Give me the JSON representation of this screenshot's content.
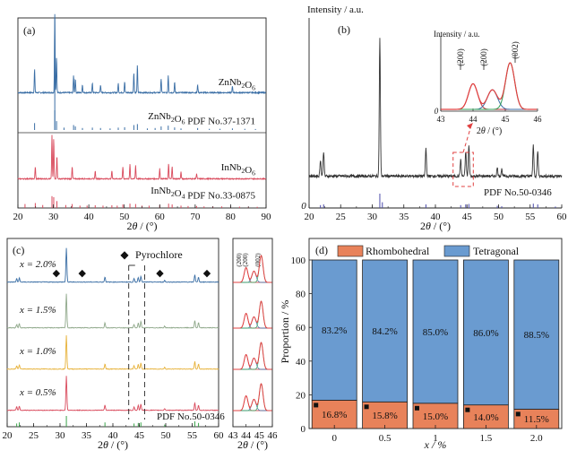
{
  "chart_data": [
    {
      "panel": "(a)",
      "type": "line",
      "xlabel": "2θ / (°)",
      "x_ticks": [
        20,
        30,
        40,
        50,
        60,
        70,
        80,
        90
      ],
      "xlim": [
        20,
        90
      ],
      "series": [
        {
          "name": "ZnNb2O6",
          "color": "#3a6ea5",
          "peaks": [
            [
              24.7,
              0.3
            ],
            [
              30.4,
              1.0
            ],
            [
              30.9,
              0.45
            ],
            [
              35.7,
              0.22
            ],
            [
              36.2,
              0.18
            ],
            [
              38.2,
              0.1
            ],
            [
              41.0,
              0.12
            ],
            [
              43.3,
              0.1
            ],
            [
              48.3,
              0.12
            ],
            [
              50.1,
              0.14
            ],
            [
              52.7,
              0.25
            ],
            [
              53.7,
              0.35
            ],
            [
              60.4,
              0.18
            ],
            [
              62.4,
              0.22
            ],
            [
              64.2,
              0.13
            ],
            [
              70.7,
              0.1
            ],
            [
              80.5,
              0.08
            ]
          ]
        },
        {
          "name": "InNb2O6",
          "color": "#d94a5c",
          "peaks": [
            [
              24.9,
              0.18
            ],
            [
              29.6,
              0.65
            ],
            [
              30.1,
              0.6
            ],
            [
              31.0,
              0.35
            ],
            [
              35.3,
              0.18
            ],
            [
              41.8,
              0.12
            ],
            [
              46.5,
              0.12
            ],
            [
              49.6,
              0.18
            ],
            [
              51.6,
              0.22
            ],
            [
              53.2,
              0.2
            ],
            [
              60.0,
              0.15
            ],
            [
              62.5,
              0.22
            ],
            [
              63.5,
              0.18
            ],
            [
              66.0,
              0.1
            ],
            [
              70.4,
              0.08
            ]
          ]
        }
      ],
      "references": [
        {
          "label": "ZnNb2O6 PDF No.37-1371",
          "color": "#3a6ea5",
          "sticks": [
            [
              24.7,
              0.35
            ],
            [
              30.4,
              1.0
            ],
            [
              30.9,
              0.45
            ],
            [
              33.0,
              0.12
            ],
            [
              35.7,
              0.25
            ],
            [
              36.2,
              0.18
            ],
            [
              38.2,
              0.1
            ],
            [
              41.0,
              0.12
            ],
            [
              43.3,
              0.1
            ],
            [
              46.0,
              0.08
            ],
            [
              48.3,
              0.12
            ],
            [
              50.1,
              0.14
            ],
            [
              52.7,
              0.25
            ],
            [
              53.7,
              0.3
            ],
            [
              56.5,
              0.08
            ],
            [
              58.7,
              0.1
            ],
            [
              60.4,
              0.18
            ],
            [
              62.4,
              0.22
            ],
            [
              64.2,
              0.13
            ],
            [
              66.0,
              0.08
            ],
            [
              70.7,
              0.1
            ],
            [
              74.0,
              0.06
            ],
            [
              77.0,
              0.06
            ],
            [
              80.5,
              0.08
            ],
            [
              84.0,
              0.06
            ],
            [
              87.0,
              0.05
            ]
          ]
        },
        {
          "label": "InNb2O4 PDF No.33-0875",
          "color": "#d94a5c",
          "sticks": [
            [
              22.0,
              0.2
            ],
            [
              24.9,
              0.25
            ],
            [
              27.0,
              0.15
            ],
            [
              29.6,
              0.6
            ],
            [
              30.1,
              0.55
            ],
            [
              31.0,
              0.35
            ],
            [
              33.5,
              0.15
            ],
            [
              35.3,
              0.2
            ],
            [
              37.5,
              0.12
            ],
            [
              39.5,
              0.12
            ],
            [
              41.8,
              0.14
            ],
            [
              44.0,
              0.12
            ],
            [
              46.5,
              0.14
            ],
            [
              48.0,
              0.12
            ],
            [
              49.6,
              0.18
            ],
            [
              51.6,
              0.22
            ],
            [
              53.2,
              0.2
            ],
            [
              55.0,
              0.12
            ],
            [
              57.0,
              0.12
            ],
            [
              60.0,
              0.15
            ],
            [
              62.5,
              0.22
            ],
            [
              63.5,
              0.18
            ],
            [
              66.0,
              0.12
            ],
            [
              68.0,
              0.1
            ],
            [
              70.4,
              0.1
            ],
            [
              72.5,
              0.08
            ],
            [
              75.0,
              0.08
            ],
            [
              77.5,
              0.08
            ],
            [
              80.0,
              0.07
            ],
            [
              82.5,
              0.07
            ],
            [
              85.0,
              0.06
            ],
            [
              87.5,
              0.06
            ]
          ]
        }
      ]
    },
    {
      "panel": "(b)",
      "type": "line",
      "ylabel": "Intensity / a.u.",
      "xlabel": "2θ / (°)",
      "x_ticks": [
        20,
        25,
        30,
        35,
        40,
        45,
        50,
        55,
        60
      ],
      "xlim": [
        20,
        60
      ],
      "y_origin_label": "0",
      "peaks": [
        [
          21.8,
          0.12
        ],
        [
          22.3,
          0.18
        ],
        [
          31.2,
          1.0
        ],
        [
          38.5,
          0.2
        ],
        [
          44.0,
          0.12
        ],
        [
          44.8,
          0.18
        ],
        [
          45.3,
          0.22
        ],
        [
          49.8,
          0.06
        ],
        [
          50.5,
          0.05
        ],
        [
          55.5,
          0.22
        ],
        [
          56.2,
          0.18
        ]
      ],
      "reference": {
        "label": "PDF No.50-0346",
        "color": "#4a4aaa",
        "sticks": [
          [
            21.8,
            0.2
          ],
          [
            22.3,
            0.25
          ],
          [
            31.2,
            1.0
          ],
          [
            31.6,
            0.4
          ],
          [
            38.5,
            0.25
          ],
          [
            44.0,
            0.2
          ],
          [
            44.8,
            0.25
          ],
          [
            45.3,
            0.28
          ],
          [
            49.8,
            0.15
          ],
          [
            50.5,
            0.12
          ],
          [
            55.5,
            0.3
          ],
          [
            56.2,
            0.25
          ],
          [
            59.0,
            0.1
          ]
        ]
      },
      "inset": {
        "ylabel": "Intensity / a.u.",
        "xlabel": "2θ / (°)",
        "x_ticks": [
          43,
          44,
          45,
          46
        ],
        "xlim": [
          43,
          46
        ],
        "y_origin_label": "0",
        "peak_labels": [
          "(200)",
          "(200)",
          "(002)"
        ],
        "components": [
          {
            "center": 44.0,
            "height": 0.55,
            "width": 0.2,
            "color": "#c0313b"
          },
          {
            "center": 44.6,
            "height": 0.42,
            "width": 0.22,
            "color": "#3a6ea5"
          },
          {
            "center": 45.15,
            "height": 1.0,
            "width": 0.2,
            "color": "#2e9e55"
          }
        ]
      }
    },
    {
      "panel": "(c)",
      "type": "line",
      "xlabel": "2θ / (°)",
      "x_ticks": [
        20,
        25,
        30,
        35,
        40,
        45,
        50,
        55,
        60
      ],
      "xlim": [
        20,
        60
      ],
      "legend": [
        {
          "marker": "◆",
          "label": "Pyrochlore"
        }
      ],
      "series": [
        {
          "name": "x = 2.0%",
          "color": "#3a6ea5"
        },
        {
          "name": "x = 1.5%",
          "color": "#8fa88a"
        },
        {
          "name": "x = 1.0%",
          "color": "#e7b23a"
        },
        {
          "name": "x = 0.5%",
          "color": "#d94a5c"
        }
      ],
      "pyrochlore_positions": [
        29.3,
        34.2,
        48.9,
        57.8
      ],
      "reference_label": "PDF No.50-0346",
      "zoom_panel": {
        "x_ticks": [
          43,
          44,
          45,
          46
        ],
        "xlim": [
          43,
          46
        ],
        "peak_labels": [
          "(200)",
          "(200)",
          "(002)"
        ]
      }
    },
    {
      "panel": "(d)",
      "type": "bar",
      "stacked": true,
      "legend": [
        "Rhombohedral",
        "Tetragonal"
      ],
      "colors": {
        "Rhombohedral": "#e8825a",
        "Tetragonal": "#6a9bd0"
      },
      "categories": [
        "0",
        "0.5",
        "1",
        "1.5",
        "2.0"
      ],
      "series": [
        {
          "name": "Rhombohedral",
          "values": [
            16.8,
            15.8,
            15.0,
            14.0,
            11.5
          ],
          "labels": [
            "16.8%",
            "15.8%",
            "15.0%",
            "14.0%",
            "11.5%"
          ]
        },
        {
          "name": "Tetragonal",
          "values": [
            83.2,
            84.2,
            85.0,
            86.0,
            88.5
          ],
          "labels": [
            "83.2%",
            "84.2%",
            "85.0%",
            "86.0%",
            "88.5%"
          ]
        }
      ],
      "ylabel": "Proportion / %",
      "xlabel": "x / %",
      "ylim": [
        0,
        100
      ],
      "y_ticks": [
        0,
        20,
        40,
        60,
        80,
        100
      ]
    }
  ]
}
